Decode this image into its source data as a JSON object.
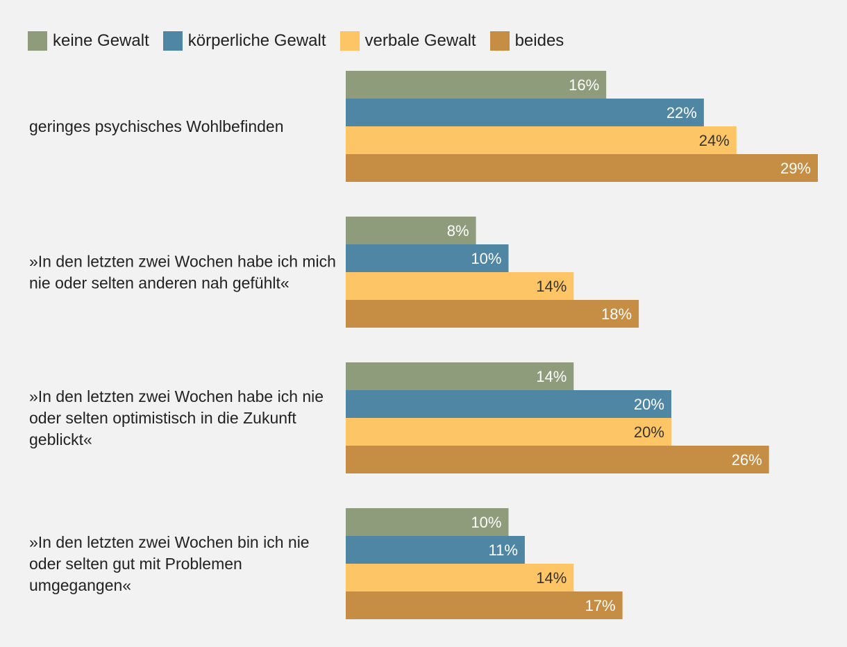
{
  "chart_data": {
    "type": "bar",
    "orientation": "horizontal",
    "title": "",
    "xlabel": "",
    "ylabel": "",
    "value_suffix": "%",
    "xlim": [
      0,
      30
    ],
    "grid": false,
    "legend_position": "top-left",
    "categories": [
      [
        "geringes psychisches Wohlbefinden"
      ],
      [
        "»In den letzten zwei Wochen habe ich mich",
        "nie oder selten anderen nah gefühlt«"
      ],
      [
        "»In den letzten zwei Wochen habe ich nie",
        "oder selten optimistisch in die Zukunft",
        "geblickt«"
      ],
      [
        "»In den letzten zwei Wochen bin ich nie",
        "oder selten gut mit Problemen",
        "umgegangen«"
      ]
    ],
    "series": [
      {
        "name": "keine Gewalt",
        "color": "#8f9c7c",
        "label_color": "#ffffff",
        "values": [
          16,
          8,
          14,
          10
        ]
      },
      {
        "name": "körperliche Gewalt",
        "color": "#4f86a4",
        "label_color": "#ffffff",
        "values": [
          22,
          10,
          20,
          11
        ]
      },
      {
        "name": "verbale Gewalt",
        "color": "#fdc565",
        "label_color": "#333333",
        "values": [
          24,
          14,
          20,
          14
        ]
      },
      {
        "name": "beides",
        "color": "#c68d44",
        "label_color": "#ffffff",
        "values": [
          29,
          18,
          26,
          17
        ]
      }
    ]
  }
}
